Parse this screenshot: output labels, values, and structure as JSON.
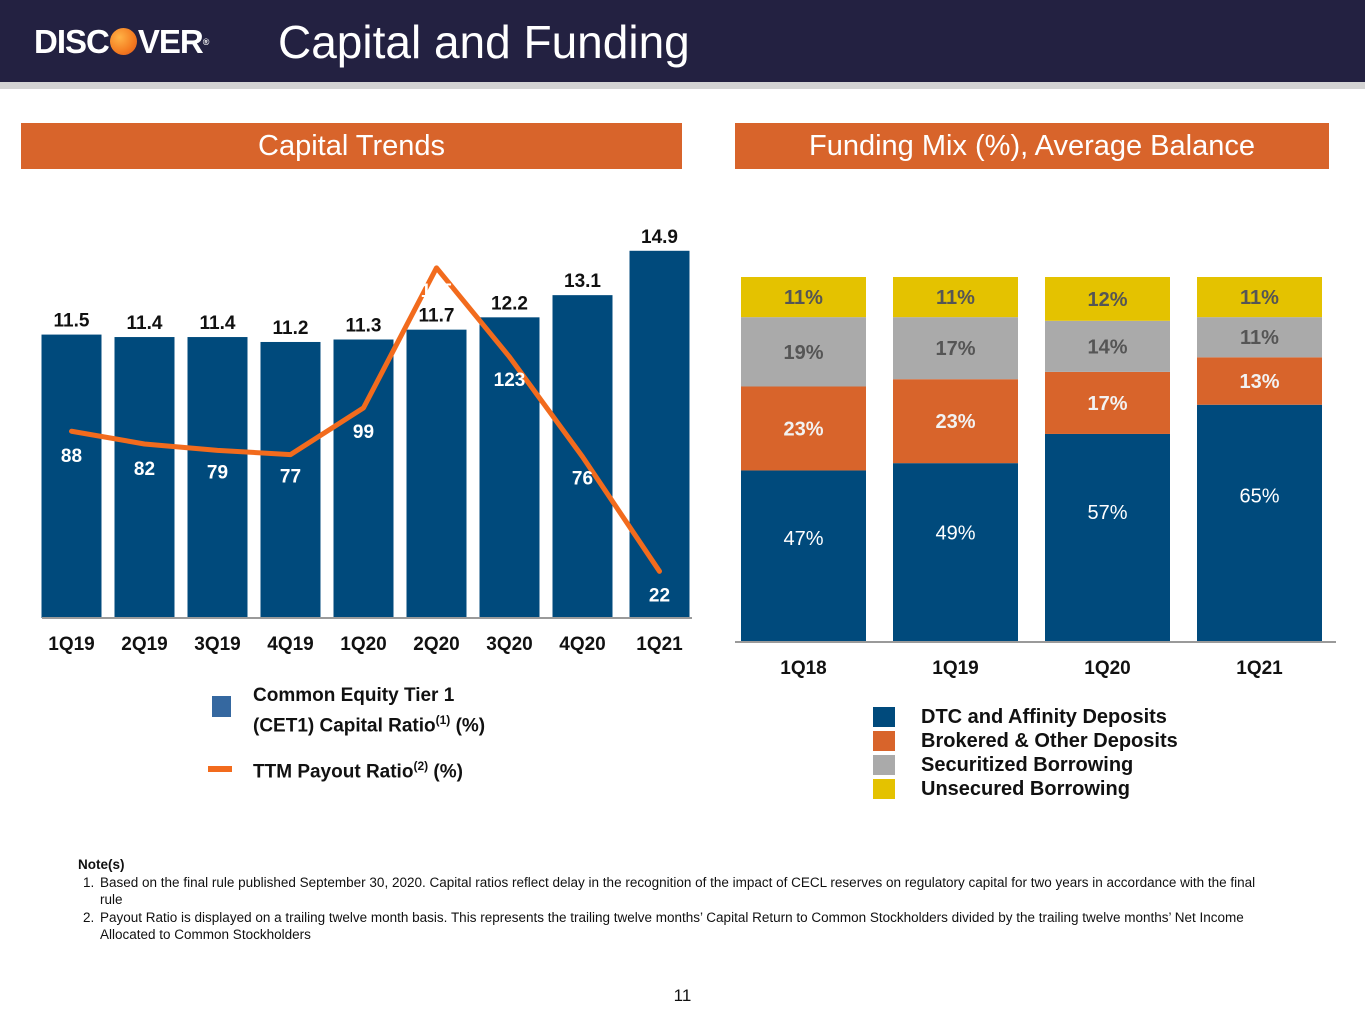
{
  "header": {
    "logo_text_1": "DISC",
    "logo_text_2": "VER",
    "title": "Capital and Funding"
  },
  "left_panel": {
    "banner": "Capital Trends"
  },
  "right_panel": {
    "banner": "Funding Mix (%), Average Balance"
  },
  "colors": {
    "navy": "#004a7c",
    "orange": "#d8642b",
    "line_orange": "#f26b1d",
    "gray": "#aaaaaa",
    "yellow": "#e4c200",
    "header": "#232141"
  },
  "chart_data": [
    {
      "type": "bar",
      "title": "Capital Trends",
      "categories": [
        "1Q19",
        "2Q19",
        "3Q19",
        "4Q19",
        "1Q20",
        "2Q20",
        "3Q20",
        "4Q20",
        "1Q21"
      ],
      "ylim": [
        0,
        15.5
      ],
      "series": [
        {
          "name": "Common Equity Tier 1 (CET1) Capital Ratio (%)",
          "type": "bar",
          "values": [
            11.5,
            11.4,
            11.4,
            11.2,
            11.3,
            11.7,
            12.2,
            13.1,
            14.9
          ]
        },
        {
          "name": "TTM Payout Ratio (%)",
          "type": "line",
          "ylim": [
            0,
            180
          ],
          "values": [
            88,
            82,
            79,
            77,
            99,
            165,
            123,
            76,
            22
          ]
        }
      ],
      "legend": {
        "bar_label_1": "Common Equity Tier 1",
        "bar_label_2": "(CET1) Capital Ratio",
        "bar_sup": "(1)",
        "bar_suffix": " (%)",
        "line_label": "TTM Payout Ratio",
        "line_sup": "(2)",
        "line_suffix": " (%)"
      }
    },
    {
      "type": "bar",
      "stacked": true,
      "title": "Funding Mix (%), Average Balance",
      "categories": [
        "1Q18",
        "1Q19",
        "1Q20",
        "1Q21"
      ],
      "series": [
        {
          "name": "DTC and Affinity Deposits",
          "color": "#004a7c",
          "values": [
            47,
            49,
            57,
            65
          ]
        },
        {
          "name": "Brokered & Other Deposits",
          "color": "#d8642b",
          "values": [
            23,
            23,
            17,
            13
          ]
        },
        {
          "name": "Securitized Borrowing",
          "color": "#aaaaaa",
          "values": [
            19,
            17,
            14,
            11
          ]
        },
        {
          "name": "Unsecured Borrowing",
          "color": "#e4c200",
          "values": [
            11,
            11,
            12,
            11
          ]
        }
      ]
    }
  ],
  "notes": {
    "heading": "Note(s)",
    "items": [
      "Based on the final rule published September 30, 2020. Capital ratios reflect delay in the recognition of the impact of CECL reserves on regulatory capital for two years in accordance with the final rule",
      "Payout Ratio is displayed on a trailing twelve month basis. This represents the trailing twelve months’ Capital Return to Common Stockholders divided by the trailing twelve months’ Net Income Allocated to Common Stockholders"
    ]
  },
  "page_number": "11"
}
